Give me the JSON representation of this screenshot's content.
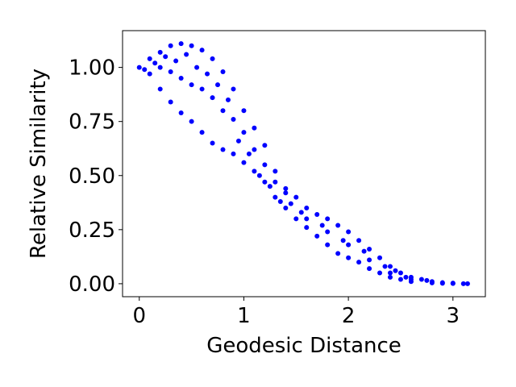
{
  "chart_data": {
    "type": "scatter",
    "xlabel": "Geodesic Distance",
    "ylabel": "Relative Similarity",
    "color": "#0000ff",
    "xlim": [
      -0.16,
      3.31
    ],
    "ylim": [
      -0.06,
      1.17
    ],
    "xticks": [
      0,
      1,
      2,
      3
    ],
    "yticks": [
      {
        "value": 0,
        "label": "0.00"
      },
      {
        "value": 0.25,
        "label": "0.25"
      },
      {
        "value": 0.5,
        "label": "0.50"
      },
      {
        "value": 0.75,
        "label": "0.75"
      },
      {
        "value": 1,
        "label": "1.00"
      }
    ],
    "x": [
      0,
      0.1,
      0.2,
      0.3,
      0.4,
      0.5,
      0.6,
      0.7,
      0.8,
      0.9,
      1.0,
      1.1,
      1.2,
      1.3,
      1.4,
      1.5,
      1.6,
      1.7,
      1.8,
      1.9,
      2.0,
      2.1,
      2.2,
      2.3,
      2.4,
      2.5,
      2.6,
      2.7,
      2.8,
      2.9,
      3.0,
      3.14,
      0.1,
      0.2,
      0.3,
      0.4,
      0.5,
      0.6,
      0.7,
      0.8,
      0.9,
      1.0,
      1.1,
      1.2,
      1.3,
      1.4,
      1.5,
      1.6,
      1.7,
      1.8,
      1.9,
      2.0,
      2.1,
      2.2,
      2.3,
      2.4,
      2.5,
      2.6,
      2.8,
      3.0,
      0.2,
      0.3,
      0.4,
      0.5,
      0.6,
      0.7,
      0.8,
      0.9,
      1.0,
      1.1,
      1.2,
      1.3,
      1.4,
      1.6,
      1.8,
      2.0,
      2.2,
      2.4,
      2.6,
      0.05,
      0.15,
      0.25,
      0.35,
      0.45,
      0.55,
      0.65,
      0.75,
      0.85,
      0.95,
      1.05,
      1.15,
      1.25,
      1.35,
      1.45,
      1.55,
      1.75,
      1.95,
      2.15,
      2.35,
      2.45,
      2.55,
      2.75,
      2.9,
      3.1
    ],
    "values": [
      1.0,
      1.04,
      1.07,
      1.1,
      1.11,
      1.1,
      1.08,
      1.04,
      0.98,
      0.9,
      0.8,
      0.72,
      0.64,
      0.52,
      0.44,
      0.4,
      0.35,
      0.32,
      0.3,
      0.27,
      0.24,
      0.2,
      0.16,
      0.12,
      0.08,
      0.05,
      0.03,
      0.02,
      0.01,
      0.005,
      0.003,
      0.0,
      0.97,
      0.9,
      0.84,
      0.79,
      0.75,
      0.7,
      0.65,
      0.62,
      0.6,
      0.56,
      0.52,
      0.47,
      0.4,
      0.35,
      0.3,
      0.26,
      0.22,
      0.18,
      0.14,
      0.12,
      0.1,
      0.07,
      0.05,
      0.03,
      0.02,
      0.01,
      0.004,
      0.001,
      1.0,
      0.98,
      0.95,
      0.92,
      0.9,
      0.86,
      0.8,
      0.76,
      0.7,
      0.62,
      0.55,
      0.47,
      0.42,
      0.3,
      0.24,
      0.18,
      0.11,
      0.05,
      0.02,
      0.99,
      1.02,
      1.05,
      1.03,
      1.06,
      1.0,
      0.97,
      0.92,
      0.85,
      0.66,
      0.6,
      0.5,
      0.45,
      0.38,
      0.37,
      0.33,
      0.27,
      0.2,
      0.15,
      0.08,
      0.06,
      0.03,
      0.015,
      0.002,
      0.0
    ]
  }
}
